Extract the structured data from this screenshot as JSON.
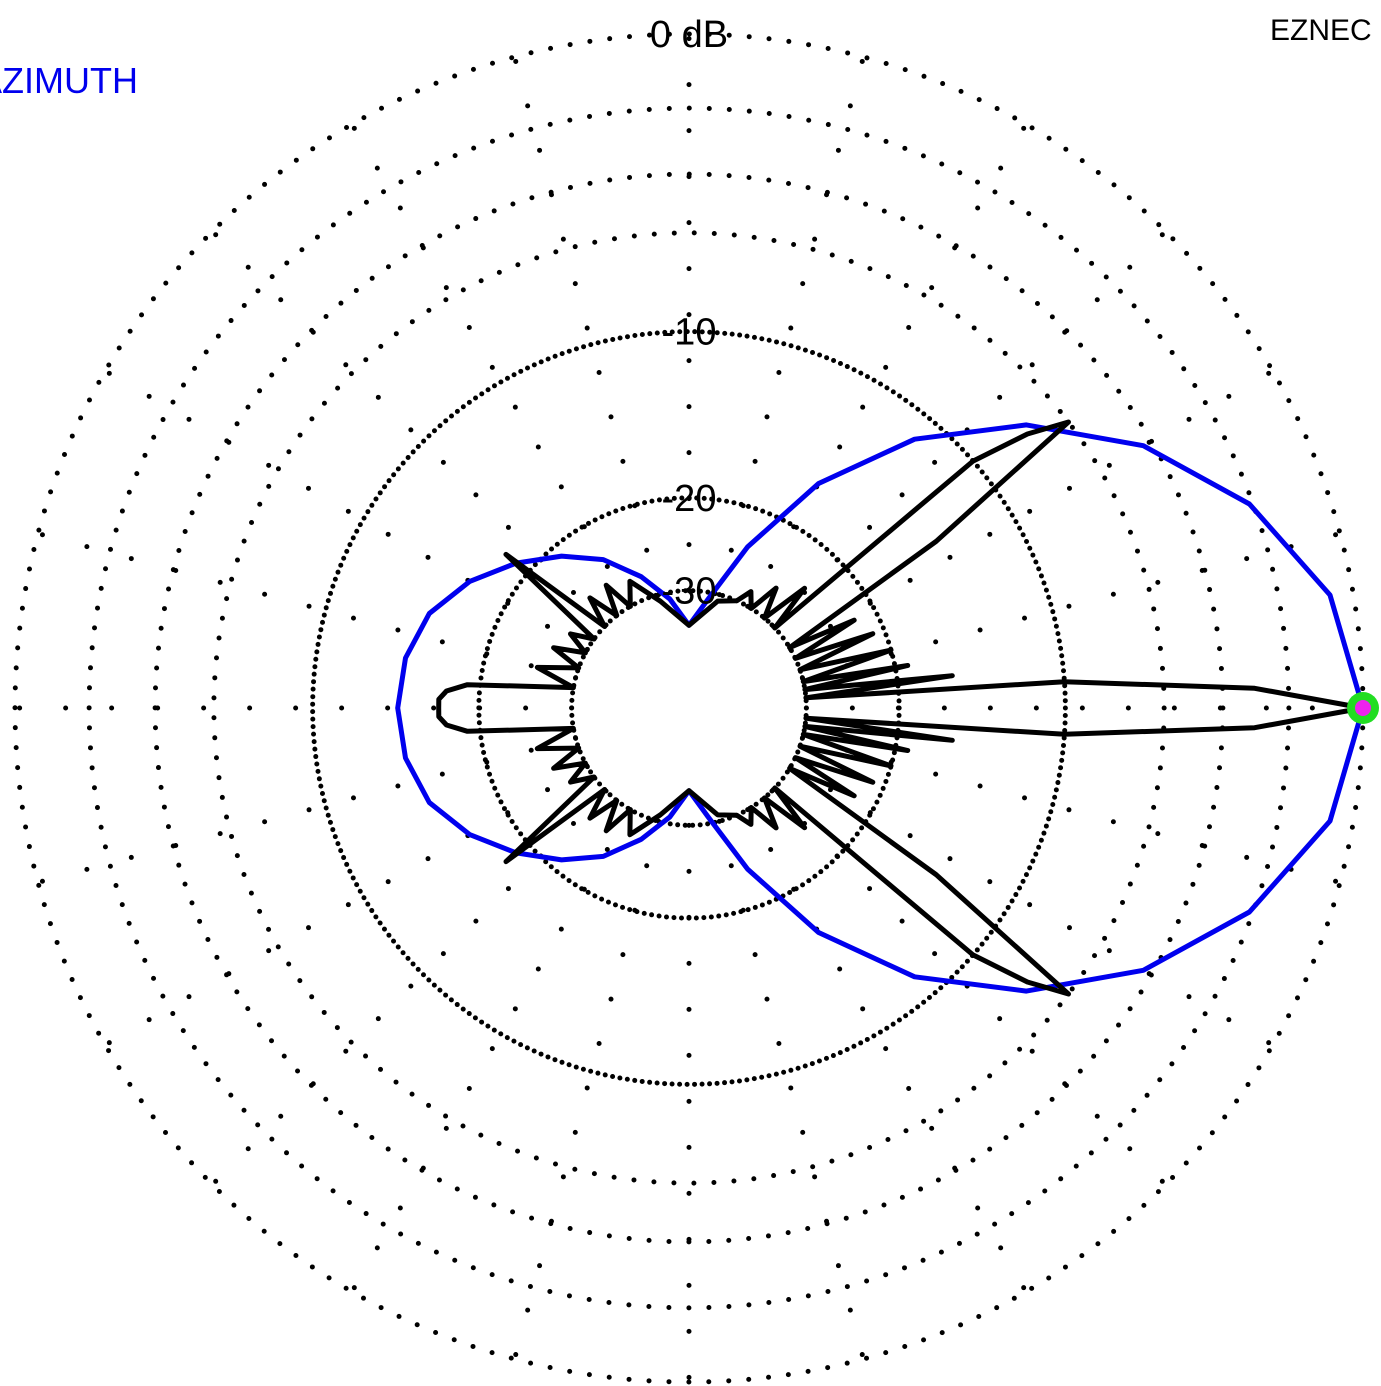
{
  "app_label": "EZNEC",
  "legend_label": "AZIMUTH",
  "chart_data": {
    "type": "polar",
    "radial_unit": "dB",
    "radial_tick_labels": [
      "0 dB",
      "-10",
      "-20",
      "-30"
    ],
    "radial_ticks_db": [
      0,
      -10,
      -20,
      -30
    ],
    "angular_spokes_deg": 15,
    "grid": true,
    "series": [
      {
        "name": "AZIMUTH",
        "color": "#0000ee",
        "points": [
          [
            0,
            0
          ],
          [
            10,
            -0.6
          ],
          [
            20,
            -2.1
          ],
          [
            30,
            -4.3
          ],
          [
            40,
            -7.3
          ],
          [
            50,
            -11.2
          ],
          [
            60,
            -16.4
          ],
          [
            70,
            -23.5
          ],
          [
            80,
            -31
          ],
          [
            90,
            -36
          ],
          [
            100,
            -31
          ],
          [
            110,
            -27
          ],
          [
            120,
            -23.5
          ],
          [
            130,
            -21
          ],
          [
            140,
            -18.8
          ],
          [
            150,
            -16.8
          ],
          [
            160,
            -15.3
          ],
          [
            170,
            -14.6
          ],
          [
            180,
            -14.4
          ]
        ]
      },
      {
        "name": "",
        "color": "#000000",
        "points": [
          [
            0,
            0
          ],
          [
            2,
            -3
          ],
          [
            4,
            -10
          ],
          [
            5,
            -30
          ],
          [
            7,
            -16
          ],
          [
            9,
            -30
          ],
          [
            11,
            -19
          ],
          [
            13,
            -30
          ],
          [
            16,
            -20
          ],
          [
            19,
            -30
          ],
          [
            22,
            -21
          ],
          [
            25,
            -30
          ],
          [
            28,
            -22
          ],
          [
            31,
            -30
          ],
          [
            34,
            -14
          ],
          [
            37,
            -6
          ],
          [
            39,
            -7.5
          ],
          [
            41,
            -10
          ],
          [
            43,
            -30
          ],
          [
            46,
            -24
          ],
          [
            50,
            -30
          ],
          [
            54,
            -26
          ],
          [
            58,
            -30
          ],
          [
            62,
            -28
          ],
          [
            66,
            -30
          ],
          [
            75,
            -31
          ],
          [
            90,
            -36
          ],
          [
            105,
            -31
          ],
          [
            115,
            -27
          ],
          [
            120,
            -30
          ],
          [
            124,
            -26
          ],
          [
            128,
            -30
          ],
          [
            132,
            -26
          ],
          [
            136,
            -30
          ],
          [
            140,
            -17.8
          ],
          [
            144,
            -30
          ],
          [
            148,
            -27
          ],
          [
            152,
            -30
          ],
          [
            156,
            -26
          ],
          [
            160,
            -30
          ],
          [
            165,
            -25
          ],
          [
            170,
            -30
          ],
          [
            174,
            -19
          ],
          [
            176,
            -17.5
          ],
          [
            178,
            -17
          ],
          [
            180,
            -17
          ]
        ]
      }
    ],
    "marker": {
      "angle_deg": 0,
      "db": 0,
      "outer_color": "#22dd22",
      "inner_color": "#ee22ee"
    }
  }
}
